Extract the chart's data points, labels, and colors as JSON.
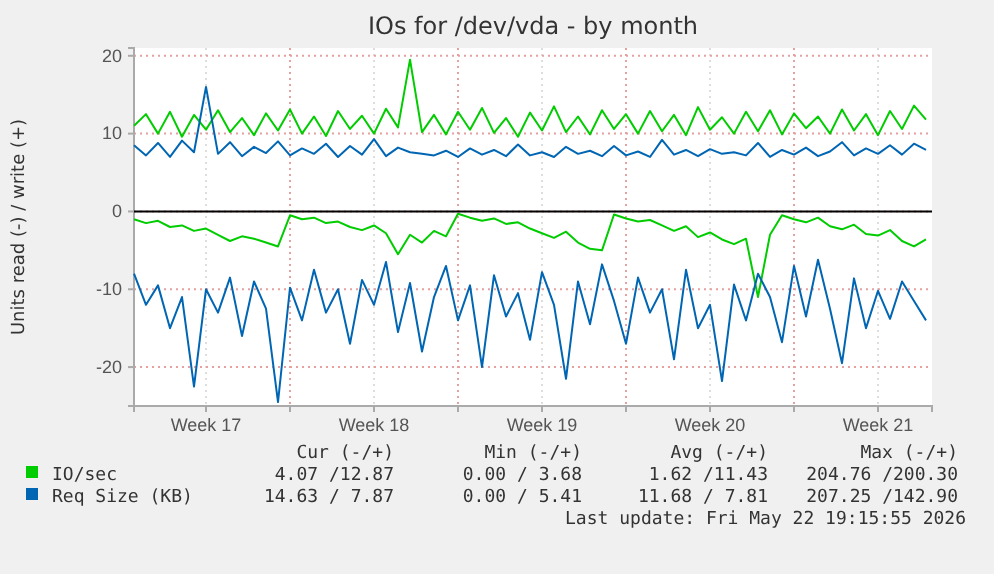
{
  "chart_data": {
    "type": "line",
    "title": "IOs for /dev/vda - by month",
    "ylabel": "Units read (-) / write (+)",
    "x": [
      "2026-04-20T12:00",
      "2026-04-21T00:00",
      "2026-04-21T12:00",
      "2026-04-22T00:00",
      "2026-04-22T12:00",
      "2026-04-23T00:00",
      "2026-04-23T12:00",
      "2026-04-24T00:00",
      "2026-04-24T12:00",
      "2026-04-25T00:00",
      "2026-04-25T12:00",
      "2026-04-26T00:00",
      "2026-04-26T12:00",
      "2026-04-27T00:00",
      "2026-04-27T12:00",
      "2026-04-28T00:00",
      "2026-04-28T12:00",
      "2026-04-29T00:00",
      "2026-04-29T12:00",
      "2026-04-30T00:00",
      "2026-04-30T12:00",
      "2026-05-01T00:00",
      "2026-05-01T12:00",
      "2026-05-02T00:00",
      "2026-05-02T12:00",
      "2026-05-03T00:00",
      "2026-05-03T12:00",
      "2026-05-04T00:00",
      "2026-05-04T12:00",
      "2026-05-05T00:00",
      "2026-05-05T12:00",
      "2026-05-06T00:00",
      "2026-05-06T12:00",
      "2026-05-07T00:00",
      "2026-05-07T12:00",
      "2026-05-08T00:00",
      "2026-05-08T12:00",
      "2026-05-09T00:00",
      "2026-05-09T12:00",
      "2026-05-10T00:00",
      "2026-05-10T12:00",
      "2026-05-11T00:00",
      "2026-05-11T12:00",
      "2026-05-12T00:00",
      "2026-05-12T12:00",
      "2026-05-13T00:00",
      "2026-05-13T12:00",
      "2026-05-14T00:00",
      "2026-05-14T12:00",
      "2026-05-15T00:00",
      "2026-05-15T12:00",
      "2026-05-16T00:00",
      "2026-05-16T12:00",
      "2026-05-17T00:00",
      "2026-05-17T12:00",
      "2026-05-18T00:00",
      "2026-05-18T12:00",
      "2026-05-19T00:00",
      "2026-05-19T12:00",
      "2026-05-20T00:00",
      "2026-05-20T12:00",
      "2026-05-21T00:00",
      "2026-05-21T12:00",
      "2026-05-22T00:00",
      "2026-05-22T12:00",
      "2026-05-23T00:00",
      "2026-05-23T12:00"
    ],
    "series": [
      {
        "name": "IO/sec",
        "color": "#00cc00",
        "values": [
          11,
          12.5,
          10,
          12.8,
          9.6,
          12.4,
          10.5,
          13,
          10.2,
          12,
          9.8,
          12.6,
          10.4,
          13.1,
          10,
          12.2,
          9.7,
          12.9,
          10.6,
          12.3,
          10,
          13.2,
          10.8,
          19.5,
          10.2,
          12.4,
          9.9,
          12.8,
          10.5,
          13.3,
          10.1,
          12,
          9.6,
          12.7,
          10.4,
          13.5,
          10.2,
          12.2,
          9.9,
          13,
          10.6,
          12.5,
          10,
          12.9,
          10.3,
          12.4,
          9.8,
          13.4,
          10.5,
          12.1,
          10,
          12.8,
          10.3,
          13,
          9.9,
          12.6,
          10.7,
          12.2,
          10,
          13.1,
          10.4,
          12.5,
          9.8,
          12.9,
          10.6,
          13.6,
          11.8
        ]
      },
      {
        "color": "#00cc00",
        "values": [
          -1,
          -1.5,
          -1.2,
          -2,
          -1.8,
          -2.5,
          -2.2,
          -3,
          -3.8,
          -3.2,
          -3.5,
          -4,
          -4.5,
          -0.5,
          -1,
          -0.8,
          -1.5,
          -1.3,
          -2,
          -2.4,
          -1.8,
          -2.8,
          -5.5,
          -3,
          -4,
          -2.5,
          -3.2,
          -0.3,
          -0.8,
          -1.2,
          -0.9,
          -1.6,
          -1.4,
          -2.2,
          -2.8,
          -3.4,
          -2.6,
          -4,
          -4.8,
          -5,
          -0.4,
          -0.9,
          -1.3,
          -1.1,
          -1.8,
          -2.5,
          -1.9,
          -3.3,
          -2.7,
          -3.6,
          -4.2,
          -3.5,
          -11,
          -3,
          -0.5,
          -1,
          -1.4,
          -0.8,
          -1.9,
          -2.3,
          -1.7,
          -2.9,
          -3.1,
          -2.4,
          -3.8,
          -4.5,
          -3.6
        ]
      },
      {
        "name": "Req Size (KB)",
        "color": "#0066b3",
        "values": [
          8.5,
          7.2,
          8.8,
          7,
          9.1,
          7.6,
          16,
          7.4,
          8.9,
          7.1,
          8.3,
          7.5,
          9,
          7.2,
          8.1,
          7.4,
          8.7,
          7,
          8.4,
          7.3,
          9.3,
          7.1,
          8.2,
          7.6,
          7.4,
          7.2,
          7.8,
          7,
          8.1,
          7.3,
          7.9,
          7.1,
          8.6,
          7.2,
          7.6,
          7,
          8.3,
          7.4,
          7.8,
          7.1,
          8.4,
          7.2,
          7.7,
          7,
          9.2,
          7.3,
          7.9,
          7.1,
          8,
          7.4,
          7.6,
          7.2,
          8.8,
          7,
          7.9,
          7.3,
          8.2,
          7.1,
          7.7,
          8.9,
          7.2,
          8.1,
          7.4,
          8.5,
          7.3,
          8.7,
          7.9
        ]
      },
      {
        "color": "#0066b3",
        "values": [
          -8,
          -12,
          -9.5,
          -15,
          -11,
          -22.5,
          -10,
          -13,
          -8.5,
          -16,
          -9,
          -12.5,
          -24.5,
          -9.8,
          -14,
          -7.5,
          -13,
          -10,
          -17,
          -8.8,
          -12,
          -6.5,
          -15.5,
          -9.2,
          -18,
          -11,
          -7,
          -14,
          -9.5,
          -20,
          -8.2,
          -13.5,
          -10.5,
          -16.5,
          -7.8,
          -12,
          -21.5,
          -9,
          -14.5,
          -6.8,
          -11.5,
          -17,
          -8.5,
          -13,
          -10,
          -19,
          -7.5,
          -15,
          -12,
          -21.8,
          -9.4,
          -14,
          -8,
          -11,
          -16.8,
          -7,
          -13.5,
          -6.2,
          -12.5,
          -19.5,
          -8.6,
          -15,
          -10.2,
          -13.8,
          -9,
          -11.5,
          -14
        ]
      }
    ],
    "xlim": [
      "2026-04-20T12:00",
      "2026-05-23T18:00"
    ],
    "xticks": [
      {
        "value": "2026-04-23T12:00",
        "label": "Week 17"
      },
      {
        "value": "2026-04-27",
        "label": null
      },
      {
        "value": "2026-04-30T12:00",
        "label": "Week 18"
      },
      {
        "value": "2026-05-04",
        "label": null
      },
      {
        "value": "2026-05-07T12:00",
        "label": "Week 19"
      },
      {
        "value": "2026-05-11",
        "label": null
      },
      {
        "value": "2026-05-14T12:00",
        "label": "Week 20"
      },
      {
        "value": "2026-05-18",
        "label": null
      },
      {
        "value": "2026-05-21T12:00",
        "label": "Week 21"
      }
    ],
    "ylim": [
      -25,
      21
    ],
    "yticks": [
      -20,
      -10,
      0,
      10,
      20
    ],
    "ref_lines": [
      {
        "axis": "y",
        "value": 0,
        "color": "#000000"
      }
    ],
    "grid": true,
    "legend": "bottom",
    "annotations": [
      "Cur (-/+)",
      "Min (-/+)",
      "Avg (-/+)",
      "Max (-/+)",
      "4.07 /12.87",
      "0.00 / 3.68",
      "1.62 /11.43",
      "204.76 /200.30",
      "14.63 / 7.87",
      "0.00 / 5.41",
      "11.68 / 7.81",
      "207.25 /142.90",
      "Last update: Fri May 22 19:15:55 2026"
    ]
  }
}
